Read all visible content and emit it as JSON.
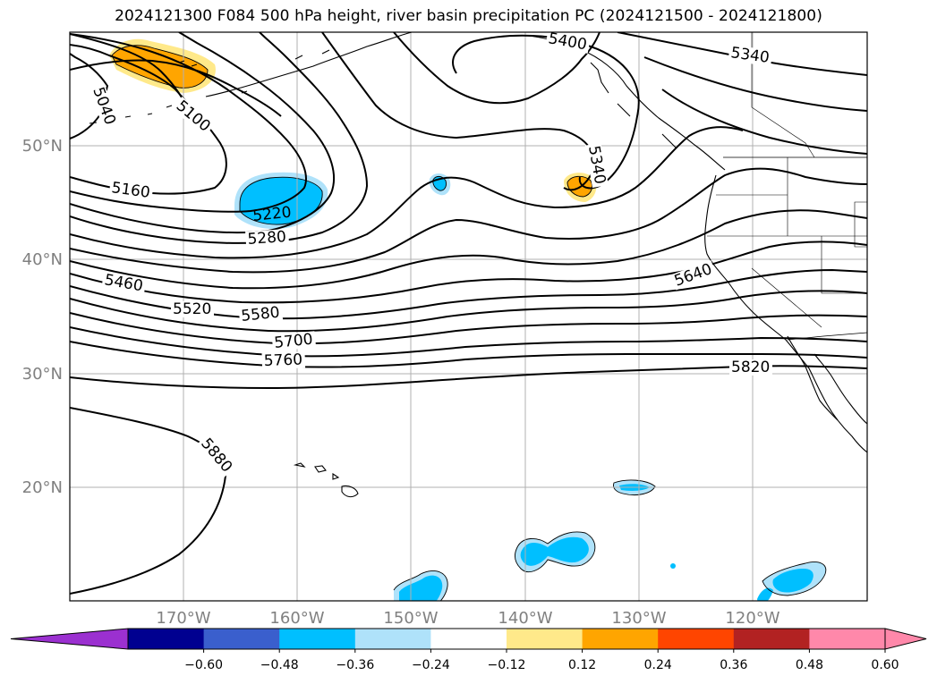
{
  "title": "2024121300 F084 500 hPa height, river basin precipitation PC (2024121500 - 2024121800)",
  "lat_labels": [
    "50°N",
    "40°N",
    "30°N",
    "20°N"
  ],
  "lon_labels": [
    "170°W",
    "160°W",
    "150°W",
    "140°W",
    "130°W",
    "120°W"
  ],
  "contour_labels": [
    "5040",
    "5100",
    "5160",
    "5220",
    "5280",
    "5340",
    "5400",
    "5340",
    "5460",
    "5520",
    "5580",
    "5640",
    "5700",
    "5760",
    "5820",
    "5880"
  ],
  "colorbar": {
    "tick_labels": [
      "−0.60",
      "−0.48",
      "−0.36",
      "−0.24",
      "−0.12",
      "0.12",
      "0.24",
      "0.36",
      "0.48",
      "0.60"
    ],
    "colors": {
      "under": "#9b30d0",
      "bins": [
        "#000090",
        "#3a5fcd",
        "#00bfff",
        "#afe2fa",
        "#ffffff",
        "#ffe98a",
        "#ffa500",
        "#ff4500",
        "#b22222",
        "#ff88aa"
      ],
      "over": "#ff88aa"
    }
  },
  "colors": {
    "contour": "#000000",
    "coast": "#000000",
    "grid": "#b0b0b0",
    "neg_strong": "#00bfff",
    "neg_light": "#afe2fa",
    "pos_strong": "#ffa500",
    "pos_light": "#ffe98a"
  }
}
